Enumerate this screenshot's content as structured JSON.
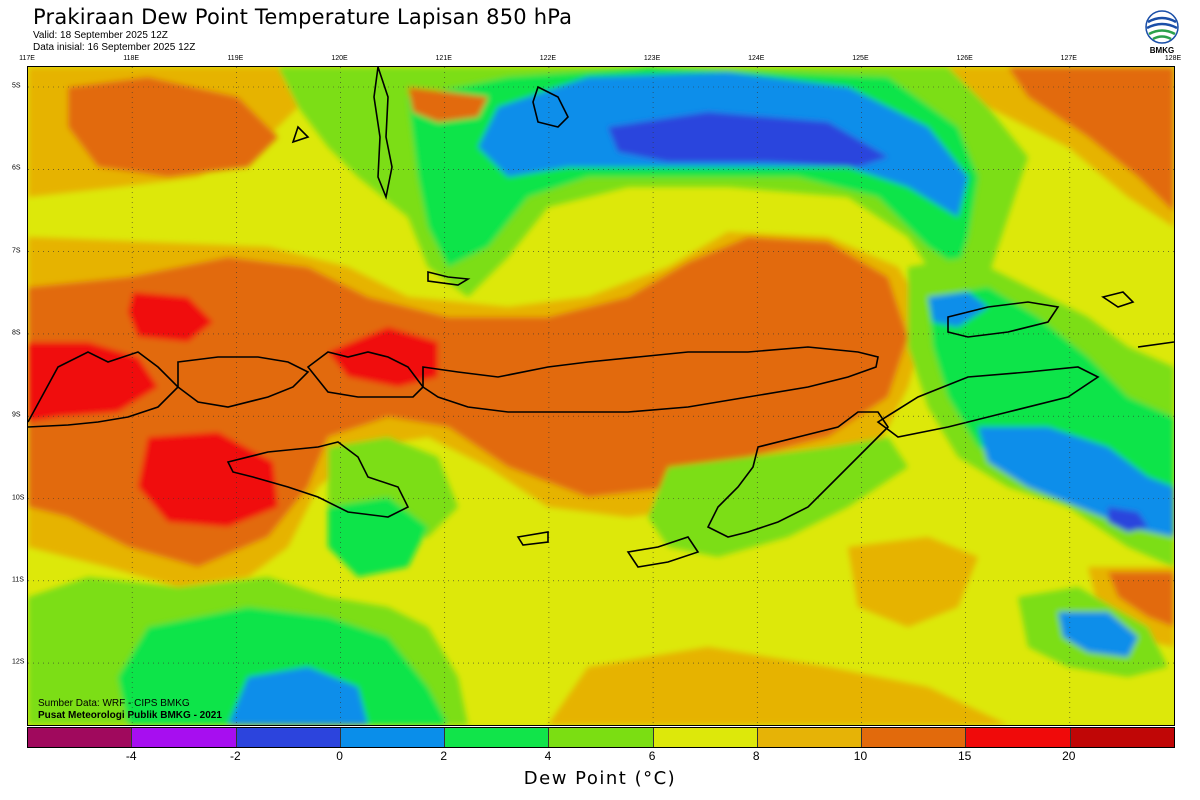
{
  "header": {
    "title": "Prakiraan Dew Point Temperature Lapisan 850 hPa",
    "valid": "Valid: 18 September 2025 12Z",
    "init": "Data inisial: 16 September 2025 12Z"
  },
  "logo": {
    "text": "BMKG",
    "icon": "bmkg-logo"
  },
  "axes": {
    "lon_labels": [
      "117E",
      "118E",
      "119E",
      "120E",
      "121E",
      "122E",
      "123E",
      "124E",
      "125E",
      "126E",
      "127E",
      "128E"
    ],
    "lat_labels": [
      "5S",
      "6S",
      "7S",
      "8S",
      "9S",
      "10S",
      "11S",
      "12S"
    ]
  },
  "source": {
    "line1": "Sumber Data: WRF - CIPS BMKG",
    "line2": "Pusat Meteorologi Publik BMKG - 2021"
  },
  "colorbar": {
    "colors": [
      "#a0095d",
      "#a70ef0",
      "#2c44dd",
      "#0a8eea",
      "#11e44a",
      "#7bde12",
      "#dde80a",
      "#e6b306",
      "#e26a0c",
      "#f00a0a",
      "#c00606"
    ],
    "labels": [
      "-4",
      "-2",
      "0",
      "2",
      "4",
      "6",
      "8",
      "10",
      "15",
      "20"
    ],
    "title": "Dew Point (°C)"
  }
}
